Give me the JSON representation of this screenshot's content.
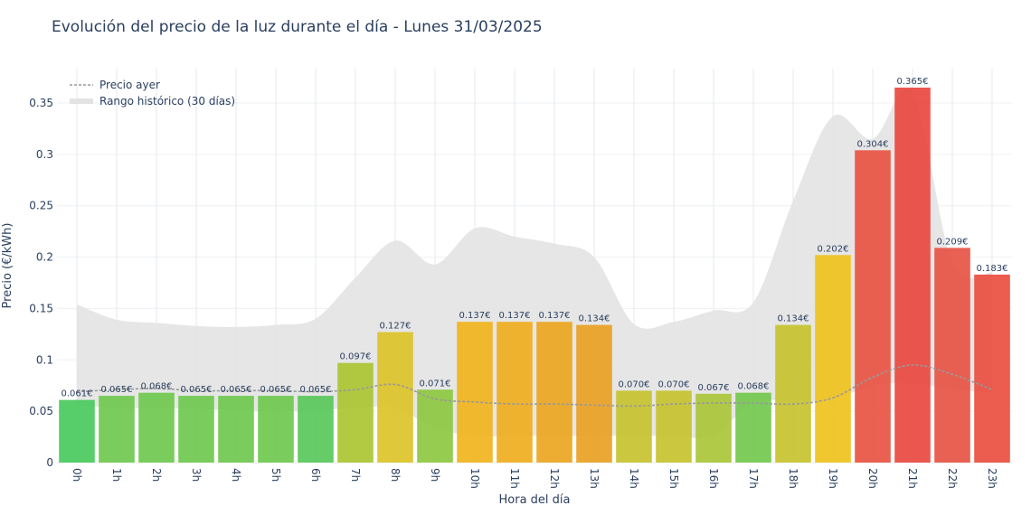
{
  "chart_data": {
    "type": "bar",
    "title": "Evolución del precio de la luz durante el día - Lunes 31/03/2025",
    "xlabel": "Hora del día",
    "ylabel": "Precio (€/kWh)",
    "ylim": [
      0,
      0.385
    ],
    "yticks": [
      0,
      0.05,
      0.1,
      0.15,
      0.2,
      0.25,
      0.3,
      0.35
    ],
    "ytick_labels": [
      "0",
      "0.05",
      "0.1",
      "0.15",
      "0.2",
      "0.25",
      "0.3",
      "0.35"
    ],
    "categories": [
      "0h",
      "1h",
      "2h",
      "3h",
      "4h",
      "5h",
      "6h",
      "7h",
      "8h",
      "9h",
      "10h",
      "11h",
      "12h",
      "13h",
      "14h",
      "15h",
      "16h",
      "17h",
      "18h",
      "19h",
      "20h",
      "21h",
      "22h",
      "23h"
    ],
    "values": [
      0.061,
      0.065,
      0.068,
      0.065,
      0.065,
      0.065,
      0.065,
      0.097,
      0.127,
      0.071,
      0.137,
      0.137,
      0.137,
      0.134,
      0.07,
      0.07,
      0.067,
      0.068,
      0.134,
      0.202,
      0.304,
      0.365,
      0.209,
      0.183
    ],
    "value_labels": [
      "0.061€",
      "0.065€",
      "0.068€",
      "0.065€",
      "0.065€",
      "0.065€",
      "0.065€",
      "0.097€",
      "0.127€",
      "0.071€",
      "0.137€",
      "0.137€",
      "0.137€",
      "0.134€",
      "0.070€",
      "0.070€",
      "0.067€",
      "0.068€",
      "0.134€",
      "0.202€",
      "0.304€",
      "0.365€",
      "0.209€",
      "0.183€"
    ],
    "bar_colors": [
      "#46c95a",
      "#6cc84a",
      "#6cc84a",
      "#6cc84a",
      "#6cc84a",
      "#6cc84a",
      "#54c656",
      "#a9c42e",
      "#dcc224",
      "#8bc63c",
      "#f0b318",
      "#eeac1a",
      "#eba41c",
      "#e99f1e",
      "#c5c22a",
      "#c5c22a",
      "#a8c434",
      "#70c74a",
      "#c5c22a",
      "#f0c11a",
      "#e9503e",
      "#e9453c",
      "#e65040",
      "#ea4a3c"
    ],
    "series": [
      {
        "name": "Precio ayer",
        "style": "dotted-line",
        "color": "#999999",
        "values": [
          0.069,
          0.071,
          0.072,
          0.07,
          0.07,
          0.07,
          0.069,
          0.071,
          0.076,
          0.062,
          0.059,
          0.057,
          0.057,
          0.056,
          0.055,
          0.057,
          0.058,
          0.058,
          0.057,
          0.063,
          0.083,
          0.095,
          0.086,
          0.071
        ]
      },
      {
        "name": "Rango histórico (30 días)",
        "style": "band",
        "color": "#e3e3e3",
        "upper": [
          0.154,
          0.139,
          0.136,
          0.133,
          0.132,
          0.134,
          0.14,
          0.18,
          0.216,
          0.193,
          0.228,
          0.22,
          0.213,
          0.2,
          0.135,
          0.137,
          0.148,
          0.156,
          0.255,
          0.337,
          0.315,
          0.36,
          0.195,
          0.185
        ],
        "lower": [
          0.056,
          0.053,
          0.053,
          0.052,
          0.051,
          0.05,
          0.051,
          0.053,
          0.053,
          0.034,
          0.026,
          0.026,
          0.026,
          0.026,
          0.026,
          0.026,
          0.026,
          0.059,
          0.059,
          0.062,
          0.075,
          0.077,
          0.071,
          0.068
        ]
      }
    ],
    "legend": [
      "Precio ayer",
      "Rango histórico (30 días)"
    ],
    "legend_position": "top-left",
    "grid": true
  }
}
